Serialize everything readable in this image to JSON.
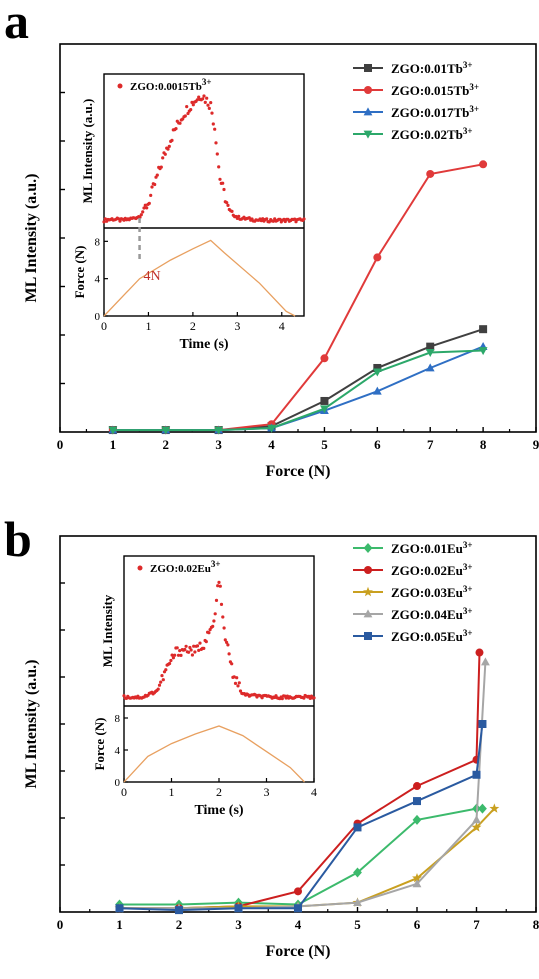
{
  "chart_data": [
    {
      "type": "line",
      "panel_label": "a",
      "xlabel": "Force (N)",
      "ylabel": "ML Intensity (a.u.)",
      "xlim": [
        0,
        9
      ],
      "ylim": [
        0,
        10
      ],
      "x_ticks": [
        "0",
        "1",
        "2",
        "3",
        "4",
        "5",
        "6",
        "7",
        "8",
        "9"
      ],
      "legend_position": "top-right",
      "x": [
        1,
        2,
        3,
        4,
        5,
        6,
        7,
        8
      ],
      "series": [
        {
          "name": "ZGO:0.01Tb3+",
          "color": "#404040",
          "marker": "square",
          "values": [
            0.05,
            0.05,
            0.05,
            0.15,
            0.8,
            1.65,
            2.2,
            2.65
          ]
        },
        {
          "name": "ZGO:0.015Tb3+",
          "color": "#e03a3a",
          "marker": "circle",
          "values": [
            0.05,
            0.05,
            0.05,
            0.2,
            1.9,
            4.5,
            6.65,
            6.9
          ]
        },
        {
          "name": "ZGO:0.017Tb3+",
          "color": "#2f6fc4",
          "marker": "triangle-up",
          "values": [
            0.05,
            0.05,
            0.05,
            0.1,
            0.55,
            1.05,
            1.65,
            2.2
          ]
        },
        {
          "name": "ZGO:0.02Tb3+",
          "color": "#2ca86a",
          "marker": "triangle-down",
          "values": [
            0.05,
            0.05,
            0.05,
            0.1,
            0.6,
            1.55,
            2.05,
            2.1
          ]
        }
      ],
      "inset": {
        "legend_label": "ZGO:0.0015Tb3+",
        "top_ylabel": "ML Intensity (a.u.)",
        "bottom_ylabel": "Force (N)",
        "xlabel": "Time (s)",
        "x_ticks": [
          "0",
          "1",
          "2",
          "3",
          "4"
        ],
        "xlim": [
          0,
          4.5
        ],
        "force_ticks": [
          "0",
          "4",
          "8"
        ],
        "force_ylim": [
          0,
          9
        ],
        "annotation": "4N",
        "intensity_points": [
          [
            0,
            0.02
          ],
          [
            0.2,
            0.03
          ],
          [
            0.4,
            0.02
          ],
          [
            0.6,
            0.03
          ],
          [
            0.8,
            0.05
          ],
          [
            1.0,
            0.15
          ],
          [
            1.2,
            0.35
          ],
          [
            1.4,
            0.55
          ],
          [
            1.6,
            0.7
          ],
          [
            1.8,
            0.82
          ],
          [
            2.0,
            0.9
          ],
          [
            2.2,
            0.96
          ],
          [
            2.4,
            0.88
          ],
          [
            2.5,
            0.7
          ],
          [
            2.6,
            0.35
          ],
          [
            2.8,
            0.1
          ],
          [
            3.0,
            0.04
          ],
          [
            3.5,
            0.02
          ],
          [
            4.0,
            0.02
          ],
          [
            4.5,
            0.02
          ]
        ],
        "force_points": [
          [
            0,
            0
          ],
          [
            0.8,
            4
          ],
          [
            1.5,
            6
          ],
          [
            2.0,
            7.2
          ],
          [
            2.4,
            8.1
          ],
          [
            2.7,
            6.8
          ],
          [
            3.5,
            3.5
          ],
          [
            4.1,
            0.5
          ],
          [
            4.3,
            0
          ]
        ]
      }
    },
    {
      "type": "line",
      "panel_label": "b",
      "xlabel": "Force (N)",
      "ylabel": "ML Intensity (a.u.)",
      "xlim": [
        0,
        8
      ],
      "ylim": [
        0,
        10
      ],
      "x_ticks": [
        "0",
        "1",
        "2",
        "3",
        "4",
        "5",
        "6",
        "7",
        "8"
      ],
      "legend_position": "top-right",
      "series": [
        {
          "name": "ZGO:0.01Eu3+",
          "color": "#3cba6c",
          "marker": "diamond",
          "x": [
            1,
            2,
            3,
            4,
            5,
            6,
            7,
            7.1
          ],
          "values": [
            0.2,
            0.2,
            0.25,
            0.2,
            1.05,
            2.45,
            2.75,
            2.75
          ]
        },
        {
          "name": "ZGO:0.02Eu3+",
          "color": "#cc1f1f",
          "marker": "circle",
          "x": [
            1,
            2,
            3,
            4,
            5,
            6,
            7,
            7.05
          ],
          "values": [
            0.1,
            0.1,
            0.15,
            0.55,
            2.35,
            3.35,
            4.05,
            6.9
          ]
        },
        {
          "name": "ZGO:0.03Eu3+",
          "color": "#c9a020",
          "marker": "star",
          "x": [
            1,
            2,
            3,
            4,
            5,
            6,
            7,
            7.3
          ],
          "values": [
            0.1,
            0.1,
            0.15,
            0.15,
            0.25,
            0.9,
            2.25,
            2.75
          ]
        },
        {
          "name": "ZGO:0.04Eu3+",
          "color": "#a6a6a6",
          "marker": "triangle-up",
          "x": [
            1,
            2,
            3,
            4,
            5,
            6,
            7,
            7.15
          ],
          "values": [
            0.1,
            0.1,
            0.1,
            0.15,
            0.25,
            0.75,
            2.45,
            6.65
          ]
        },
        {
          "name": "ZGO:0.05Eu3+",
          "color": "#2a5aa0",
          "marker": "square",
          "x": [
            1,
            2,
            3,
            4,
            5,
            6,
            7,
            7.1
          ],
          "values": [
            0.1,
            0.05,
            0.1,
            0.1,
            2.25,
            2.95,
            3.65,
            5.0
          ]
        }
      ],
      "inset": {
        "legend_label": "ZGO:0.02Eu3+",
        "top_ylabel": "ML Intensity",
        "bottom_ylabel": "Force (N)",
        "xlabel": "Time (s)",
        "x_ticks": [
          "0",
          "1",
          "2",
          "3",
          "4"
        ],
        "xlim": [
          0,
          4
        ],
        "force_ticks": [
          "0",
          "4",
          "8"
        ],
        "force_ylim": [
          0,
          9
        ],
        "intensity_points": [
          [
            0,
            0.03
          ],
          [
            0.4,
            0.03
          ],
          [
            0.7,
            0.08
          ],
          [
            0.9,
            0.25
          ],
          [
            1.1,
            0.38
          ],
          [
            1.3,
            0.4
          ],
          [
            1.5,
            0.38
          ],
          [
            1.7,
            0.45
          ],
          [
            1.9,
            0.6
          ],
          [
            2.0,
            0.95
          ],
          [
            2.1,
            0.55
          ],
          [
            2.3,
            0.2
          ],
          [
            2.5,
            0.05
          ],
          [
            3.0,
            0.03
          ],
          [
            4.0,
            0.03
          ]
        ],
        "force_points": [
          [
            0,
            0
          ],
          [
            0.5,
            3.2
          ],
          [
            1.0,
            4.8
          ],
          [
            1.5,
            6.0
          ],
          [
            2.0,
            7.0
          ],
          [
            2.5,
            5.8
          ],
          [
            3.0,
            3.8
          ],
          [
            3.5,
            1.8
          ],
          [
            3.8,
            0
          ]
        ]
      }
    }
  ]
}
